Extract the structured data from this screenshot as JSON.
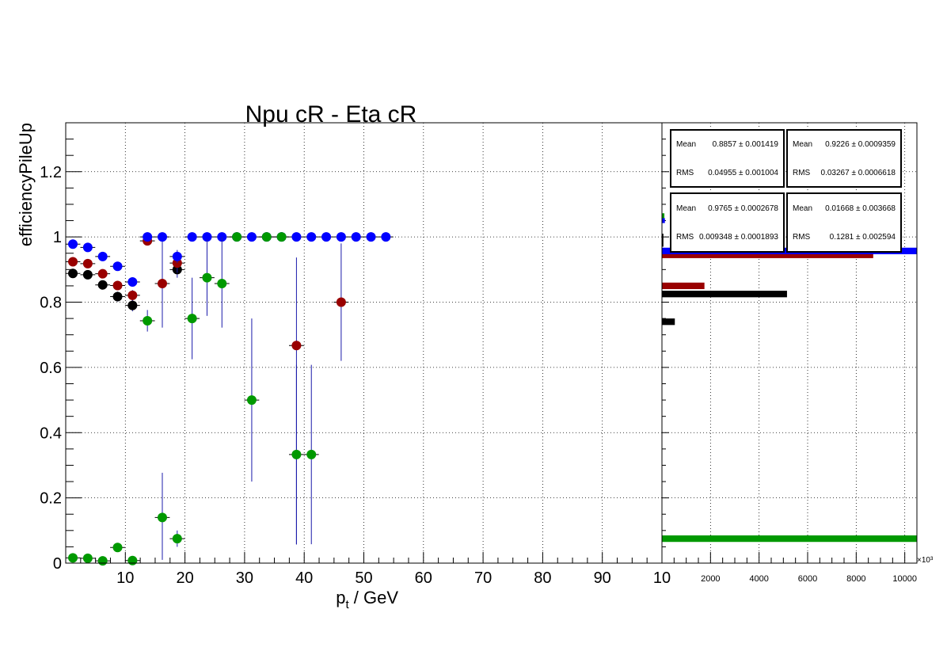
{
  "chart_data": [
    {
      "type": "scatter",
      "title": "Npu cR - Eta cR",
      "xlabel": "p_t / GeV",
      "ylabel": "efficiencyPileUp",
      "xlim": [
        0,
        100
      ],
      "ylim": [
        0,
        1.35
      ],
      "x_ticks": [
        "10",
        "20",
        "30",
        "40",
        "50",
        "60",
        "70",
        "80",
        "90",
        "10"
      ],
      "y_ticks": [
        "0",
        "0.2",
        "0.4",
        "0.6",
        "0.8",
        "1",
        "1.2"
      ],
      "grid": true,
      "series": [
        {
          "color": "#000000",
          "points": [
            {
              "x": 1.2,
              "y": 0.888,
              "ylo": 0.013,
              "yhi": 0.013
            },
            {
              "x": 3.7,
              "y": 0.884,
              "ylo": 0.012,
              "yhi": 0.012
            },
            {
              "x": 6.2,
              "y": 0.853,
              "ylo": 0.013,
              "yhi": 0.013
            },
            {
              "x": 8.7,
              "y": 0.817,
              "ylo": 0.015,
              "yhi": 0.015
            },
            {
              "x": 11.2,
              "y": 0.79,
              "ylo": 0.018,
              "yhi": 0.018
            },
            {
              "x": 18.7,
              "y": 0.9,
              "ylo": 0.025,
              "yhi": 0.025
            }
          ]
        },
        {
          "color": "#990000",
          "points": [
            {
              "x": 1.2,
              "y": 0.924,
              "ylo": 0.012,
              "yhi": 0.012
            },
            {
              "x": 3.7,
              "y": 0.918,
              "ylo": 0.012,
              "yhi": 0.012
            },
            {
              "x": 6.2,
              "y": 0.887,
              "ylo": 0.012,
              "yhi": 0.012
            },
            {
              "x": 8.7,
              "y": 0.851,
              "ylo": 0.014,
              "yhi": 0.014
            },
            {
              "x": 11.2,
              "y": 0.821,
              "ylo": 0.016,
              "yhi": 0.016
            },
            {
              "x": 13.7,
              "y": 0.988,
              "ylo": 0.012,
              "yhi": 0.012
            },
            {
              "x": 16.2,
              "y": 0.857,
              "ylo": 0.135,
              "yhi": 0.143
            },
            {
              "x": 18.7,
              "y": 0.92,
              "ylo": 0.03,
              "yhi": 0.03
            },
            {
              "x": 38.7,
              "y": 0.667,
              "ylo": 0.61,
              "yhi": 0.27
            },
            {
              "x": 46.2,
              "y": 0.8,
              "ylo": 0.18,
              "yhi": 0.18
            }
          ]
        },
        {
          "color": "#0000ff",
          "points": [
            {
              "x": 1.2,
              "y": 0.978,
              "ylo": 0.006,
              "yhi": 0.006
            },
            {
              "x": 3.7,
              "y": 0.968,
              "ylo": 0.006,
              "yhi": 0.006
            },
            {
              "x": 6.2,
              "y": 0.94,
              "ylo": 0.008,
              "yhi": 0.008
            },
            {
              "x": 8.7,
              "y": 0.91,
              "ylo": 0.01,
              "yhi": 0.01
            },
            {
              "x": 11.2,
              "y": 0.862,
              "ylo": 0.014,
              "yhi": 0.014
            },
            {
              "x": 13.7,
              "y": 1.0,
              "ylo": 0.004,
              "yhi": 0.0
            },
            {
              "x": 16.2,
              "y": 1.0,
              "ylo": 0.0,
              "yhi": 0.0
            },
            {
              "x": 18.7,
              "y": 0.94,
              "ylo": 0.02,
              "yhi": 0.02
            },
            {
              "x": 21.2,
              "y": 1.0,
              "ylo": 0.0,
              "yhi": 0.0
            },
            {
              "x": 23.7,
              "y": 1.0,
              "ylo": 0.0,
              "yhi": 0.0
            },
            {
              "x": 26.2,
              "y": 1.0,
              "ylo": 0.0,
              "yhi": 0.0
            },
            {
              "x": 28.7,
              "y": 1.0,
              "ylo": 0.0,
              "yhi": 0.0
            },
            {
              "x": 31.2,
              "y": 1.0,
              "ylo": 0.0,
              "yhi": 0.0
            },
            {
              "x": 33.7,
              "y": 1.0,
              "ylo": 0.0,
              "yhi": 0.0
            },
            {
              "x": 36.2,
              "y": 1.0,
              "ylo": 0.0,
              "yhi": 0.0
            },
            {
              "x": 38.7,
              "y": 1.0,
              "ylo": 0.0,
              "yhi": 0.0
            },
            {
              "x": 41.2,
              "y": 1.0,
              "ylo": 0.0,
              "yhi": 0.0
            },
            {
              "x": 43.7,
              "y": 1.0,
              "ylo": 0.0,
              "yhi": 0.0
            },
            {
              "x": 46.2,
              "y": 1.0,
              "ylo": 0.0,
              "yhi": 0.0
            },
            {
              "x": 48.7,
              "y": 1.0,
              "ylo": 0.0,
              "yhi": 0.0
            },
            {
              "x": 51.2,
              "y": 1.0,
              "ylo": 0.0,
              "yhi": 0.0
            },
            {
              "x": 53.7,
              "y": 1.0,
              "ylo": 0.0,
              "yhi": 0.0
            }
          ]
        },
        {
          "color": "#009900",
          "points": [
            {
              "x": 1.2,
              "y": 0.016,
              "ylo": 0.005,
              "yhi": 0.005
            },
            {
              "x": 3.7,
              "y": 0.015,
              "ylo": 0.005,
              "yhi": 0.005
            },
            {
              "x": 6.2,
              "y": 0.007,
              "ylo": 0.004,
              "yhi": 0.004
            },
            {
              "x": 8.7,
              "y": 0.048,
              "ylo": 0.01,
              "yhi": 0.01
            },
            {
              "x": 11.2,
              "y": 0.008,
              "ylo": 0.006,
              "yhi": 0.006
            },
            {
              "x": 13.7,
              "y": 0.743,
              "ylo": 0.033,
              "yhi": 0.033
            },
            {
              "x": 16.2,
              "y": 0.14,
              "ylo": 0.13,
              "yhi": 0.137
            },
            {
              "x": 18.7,
              "y": 0.075,
              "ylo": 0.025,
              "yhi": 0.025
            },
            {
              "x": 21.2,
              "y": 0.75,
              "ylo": 0.125,
              "yhi": 0.125
            },
            {
              "x": 23.7,
              "y": 0.875,
              "ylo": 0.117,
              "yhi": 0.117
            },
            {
              "x": 26.2,
              "y": 0.857,
              "ylo": 0.135,
              "yhi": 0.143
            },
            {
              "x": 28.7,
              "y": 1.0,
              "ylo": 0.0,
              "yhi": 0.0
            },
            {
              "x": 31.2,
              "y": 0.5,
              "ylo": 0.25,
              "yhi": 0.25
            },
            {
              "x": 33.7,
              "y": 1.0,
              "ylo": 0.0,
              "yhi": 0.0
            },
            {
              "x": 36.2,
              "y": 1.0,
              "ylo": 0.0,
              "yhi": 0.0
            },
            {
              "x": 38.7,
              "y": 0.333,
              "ylo": 0.275,
              "yhi": 0.275
            },
            {
              "x": 41.2,
              "y": 0.333,
              "ylo": 0.275,
              "yhi": 0.275
            }
          ]
        }
      ]
    },
    {
      "type": "bar",
      "orientation": "horizontal",
      "x_ticks": [
        "2000",
        "4000",
        "6000",
        "8000",
        "10000"
      ],
      "x_exponent_label": "×10³",
      "xlim": [
        0,
        10500
      ],
      "ylim": [
        0,
        1.35
      ],
      "grid": true,
      "series": [
        {
          "color": "#000000",
          "bars": [
            {
              "y": 0.99,
              "value": 60,
              "height": 0.04
            },
            {
              "y": 0.95,
              "value": 4700,
              "height": 0.02
            },
            {
              "y": 0.825,
              "value": 5150,
              "height": 0.02
            },
            {
              "y": 0.74,
              "value": 530,
              "height": 0.02
            }
          ]
        },
        {
          "color": "#990000",
          "bars": [
            {
              "y": 0.945,
              "value": 8700,
              "height": 0.02
            },
            {
              "y": 0.85,
              "value": 1750,
              "height": 0.02
            }
          ]
        },
        {
          "color": "#0000ff",
          "bars": [
            {
              "y": 0.957,
              "value": 10500,
              "height": 0.02
            },
            {
              "y": 1.05,
              "value": 120,
              "height": 0.015
            }
          ]
        },
        {
          "color": "#009900",
          "bars": [
            {
              "y": 0.075,
              "value": 10500,
              "height": 0.02
            },
            {
              "y": 1.065,
              "value": 100,
              "height": 0.015
            }
          ]
        }
      ],
      "stats": [
        {
          "color": "#000000",
          "mean_label": "Mean",
          "mean_value": "0.8857 ± 0.001419",
          "rms_label": "RMS",
          "rms_value": "0.04955 ± 0.001004"
        },
        {
          "color": "#990000",
          "mean_label": "Mean",
          "mean_value": "0.9226 ± 0.0009359",
          "rms_label": "RMS",
          "rms_value": "0.03267 ± 0.0006618"
        },
        {
          "color": "#0000ff",
          "mean_label": "Mean",
          "mean_value": "0.9765 ± 0.0002678",
          "rms_label": "RMS",
          "rms_value": "0.009348 ± 0.0001893"
        },
        {
          "color": "#009900",
          "mean_label": "Mean",
          "mean_value": "0.01668 ± 0.003668",
          "rms_label": "RMS",
          "rms_value": "0.1281 ± 0.002594"
        }
      ]
    }
  ]
}
